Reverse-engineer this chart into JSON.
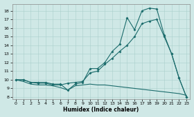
{
  "xlabel": "Humidex (Indice chaleur)",
  "x_ticks": [
    0,
    1,
    2,
    3,
    4,
    5,
    6,
    7,
    8,
    9,
    10,
    11,
    12,
    13,
    14,
    15,
    16,
    17,
    18,
    19,
    20,
    21,
    22,
    23
  ],
  "ylim": [
    7.8,
    18.8
  ],
  "xlim": [
    -0.5,
    23.5
  ],
  "yticks": [
    8,
    9,
    10,
    11,
    12,
    13,
    14,
    15,
    16,
    17,
    18
  ],
  "bg_color": "#cfe8e6",
  "line_color": "#1a6b6b",
  "series1_x": [
    0,
    1,
    2,
    3,
    4,
    5,
    6,
    7,
    8,
    9,
    10,
    11,
    12,
    13,
    14,
    15,
    16,
    17,
    18,
    19,
    20,
    21,
    22,
    23
  ],
  "series1_y": [
    10,
    10,
    9.7,
    9.7,
    9.7,
    9.5,
    9.5,
    8.8,
    9.5,
    9.7,
    11.3,
    11.3,
    12.0,
    13.3,
    14.1,
    17.2,
    15.8,
    18.0,
    18.3,
    18.2,
    15.2,
    13.0,
    10.2,
    8.0
  ],
  "series2_x": [
    0,
    1,
    2,
    3,
    4,
    5,
    6,
    7,
    8,
    9,
    10,
    11,
    12,
    13,
    14,
    15,
    16,
    17,
    18,
    19,
    20,
    21,
    22,
    23
  ],
  "series2_y": [
    10,
    10,
    9.7,
    9.6,
    9.6,
    9.4,
    9.4,
    9.6,
    9.7,
    9.8,
    10.8,
    11.0,
    11.8,
    12.5,
    13.3,
    14.0,
    15.0,
    16.5,
    16.8,
    17.0,
    15.0,
    13.0,
    10.2,
    8.0
  ],
  "series3_x": [
    0,
    1,
    2,
    3,
    4,
    5,
    6,
    7,
    8,
    9,
    10,
    11,
    12,
    13,
    14,
    15,
    16,
    17,
    18,
    19,
    20,
    21,
    22,
    23
  ],
  "series3_y": [
    10,
    9.8,
    9.5,
    9.4,
    9.4,
    9.3,
    9.1,
    8.8,
    9.3,
    9.4,
    9.5,
    9.4,
    9.4,
    9.3,
    9.2,
    9.1,
    9.0,
    8.9,
    8.8,
    8.7,
    8.6,
    8.5,
    8.4,
    8.2
  ]
}
